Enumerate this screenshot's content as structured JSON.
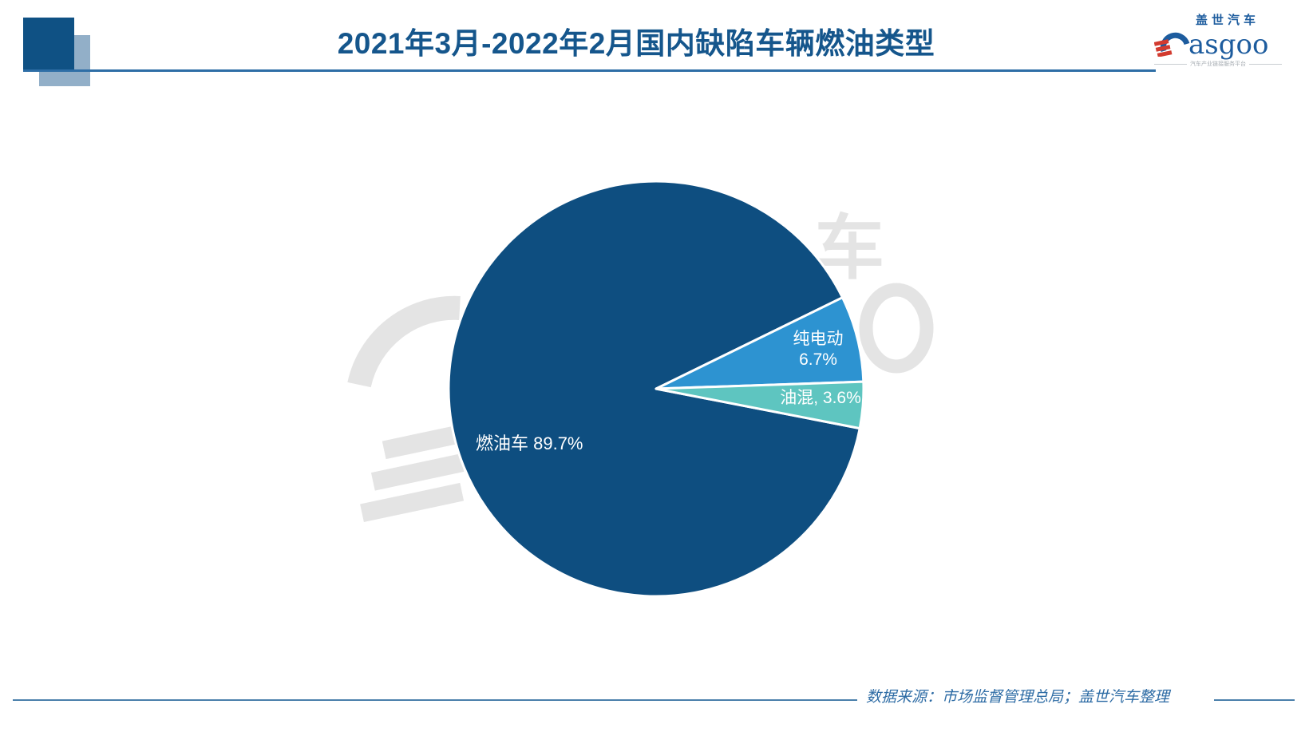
{
  "header": {
    "title": "2021年3月-2022年2月国内缺陷车辆燃油类型",
    "title_color": "#15568C",
    "underline_color": "#2E6EA6",
    "dark_square_color": "#0F5184",
    "light_square_color": "#92AFC8"
  },
  "logo": {
    "cn": "盖世汽车",
    "en": "asgoo",
    "tagline": "汽车产业链接服务平台",
    "blue": "#1D5C9E",
    "red": "#D23B2F"
  },
  "chart_data": {
    "type": "pie",
    "title": "2021年3月-2022年2月国内缺陷车辆燃油类型",
    "categories": [
      "燃油车",
      "纯电动",
      "油混"
    ],
    "values": [
      89.7,
      6.7,
      3.6
    ],
    "unit": "%",
    "colors": [
      "#0E4E80",
      "#2D93D1",
      "#5EC5C0"
    ],
    "slice_stroke": "#ffffff",
    "start_angle_deg": -11,
    "direction": "clockwise",
    "legend": "none",
    "data_labels": [
      "燃油车 89.7%",
      "纯电动 6.7%",
      "油混, 3.6%"
    ]
  },
  "slice_labels": {
    "fuel": "燃油车 89.7%",
    "bev_line1": "纯电动",
    "bev_line2": "6.7%",
    "hybrid": "油混, 3.6%"
  },
  "watermark": {
    "glyph": "车",
    "color": "#E4E4E4"
  },
  "footer": {
    "source": "数据来源：市场监督管理总局；盖世汽车整理"
  }
}
